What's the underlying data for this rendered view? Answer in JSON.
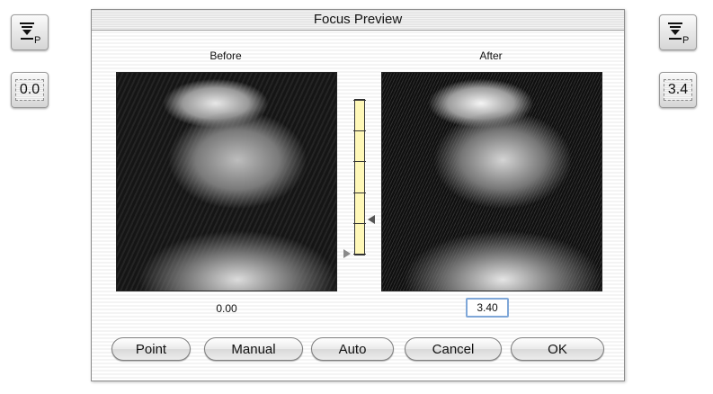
{
  "left_panel": {
    "icon": "focus-point-icon",
    "value": "0.0"
  },
  "right_panel": {
    "icon": "focus-point-icon",
    "value": "3.4"
  },
  "dialog": {
    "title": "Focus Preview",
    "before_label": "Before",
    "after_label": "After",
    "before_value": "0.00",
    "after_value": "3.40",
    "slider_fraction": 0.34,
    "buttons": {
      "point": "Point",
      "manual": "Manual",
      "auto": "Auto",
      "cancel": "Cancel",
      "ok": "OK"
    }
  }
}
